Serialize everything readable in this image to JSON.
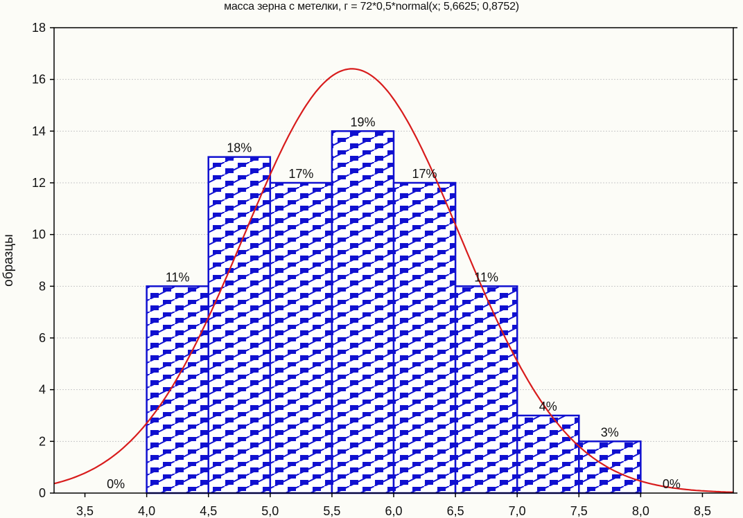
{
  "chart_data": {
    "type": "bar",
    "title": "масса зерна с метелки, г = 72*0,5*normal(x; 5,6625; 0,8752)",
    "xlabel": "",
    "ylabel": "образцы",
    "xlim": [
      3.25,
      8.75
    ],
    "ylim": [
      0,
      18
    ],
    "x_ticks": [
      "3,5",
      "4,0",
      "4,5",
      "5,0",
      "5,5",
      "6,0",
      "6,5",
      "7,0",
      "7,5",
      "8,0",
      "8,5"
    ],
    "x_tick_values": [
      3.5,
      4.0,
      4.5,
      5.0,
      5.5,
      6.0,
      6.5,
      7.0,
      7.5,
      8.0,
      8.5
    ],
    "y_ticks": [
      0,
      2,
      4,
      6,
      8,
      10,
      12,
      14,
      16,
      18
    ],
    "grid": true,
    "bins": [
      {
        "from": 3.5,
        "to": 4.0,
        "count": 0,
        "label": "0%"
      },
      {
        "from": 4.0,
        "to": 4.5,
        "count": 8,
        "label": "11%"
      },
      {
        "from": 4.5,
        "to": 5.0,
        "count": 13,
        "label": "18%"
      },
      {
        "from": 5.0,
        "to": 5.5,
        "count": 12,
        "label": "17%"
      },
      {
        "from": 5.5,
        "to": 6.0,
        "count": 14,
        "label": "19%"
      },
      {
        "from": 6.0,
        "to": 6.5,
        "count": 12,
        "label": "17%"
      },
      {
        "from": 6.5,
        "to": 7.0,
        "count": 8,
        "label": "11%"
      },
      {
        "from": 7.0,
        "to": 7.5,
        "count": 3,
        "label": "4%"
      },
      {
        "from": 7.5,
        "to": 8.0,
        "count": 2,
        "label": "3%"
      },
      {
        "from": 8.0,
        "to": 8.5,
        "count": 0,
        "label": "0%"
      }
    ],
    "fit_curve": {
      "type": "normal",
      "scale": 36,
      "mean": 5.6625,
      "sd": 0.8752
    },
    "colors": {
      "bar_edge": "#1010d0",
      "bar_pattern": "#1010d0",
      "bar_fill": "#ffffff",
      "curve": "#d81c1c",
      "grid": "#c8c8c8",
      "axis": "#000000",
      "background": "#fcfcf7"
    }
  }
}
